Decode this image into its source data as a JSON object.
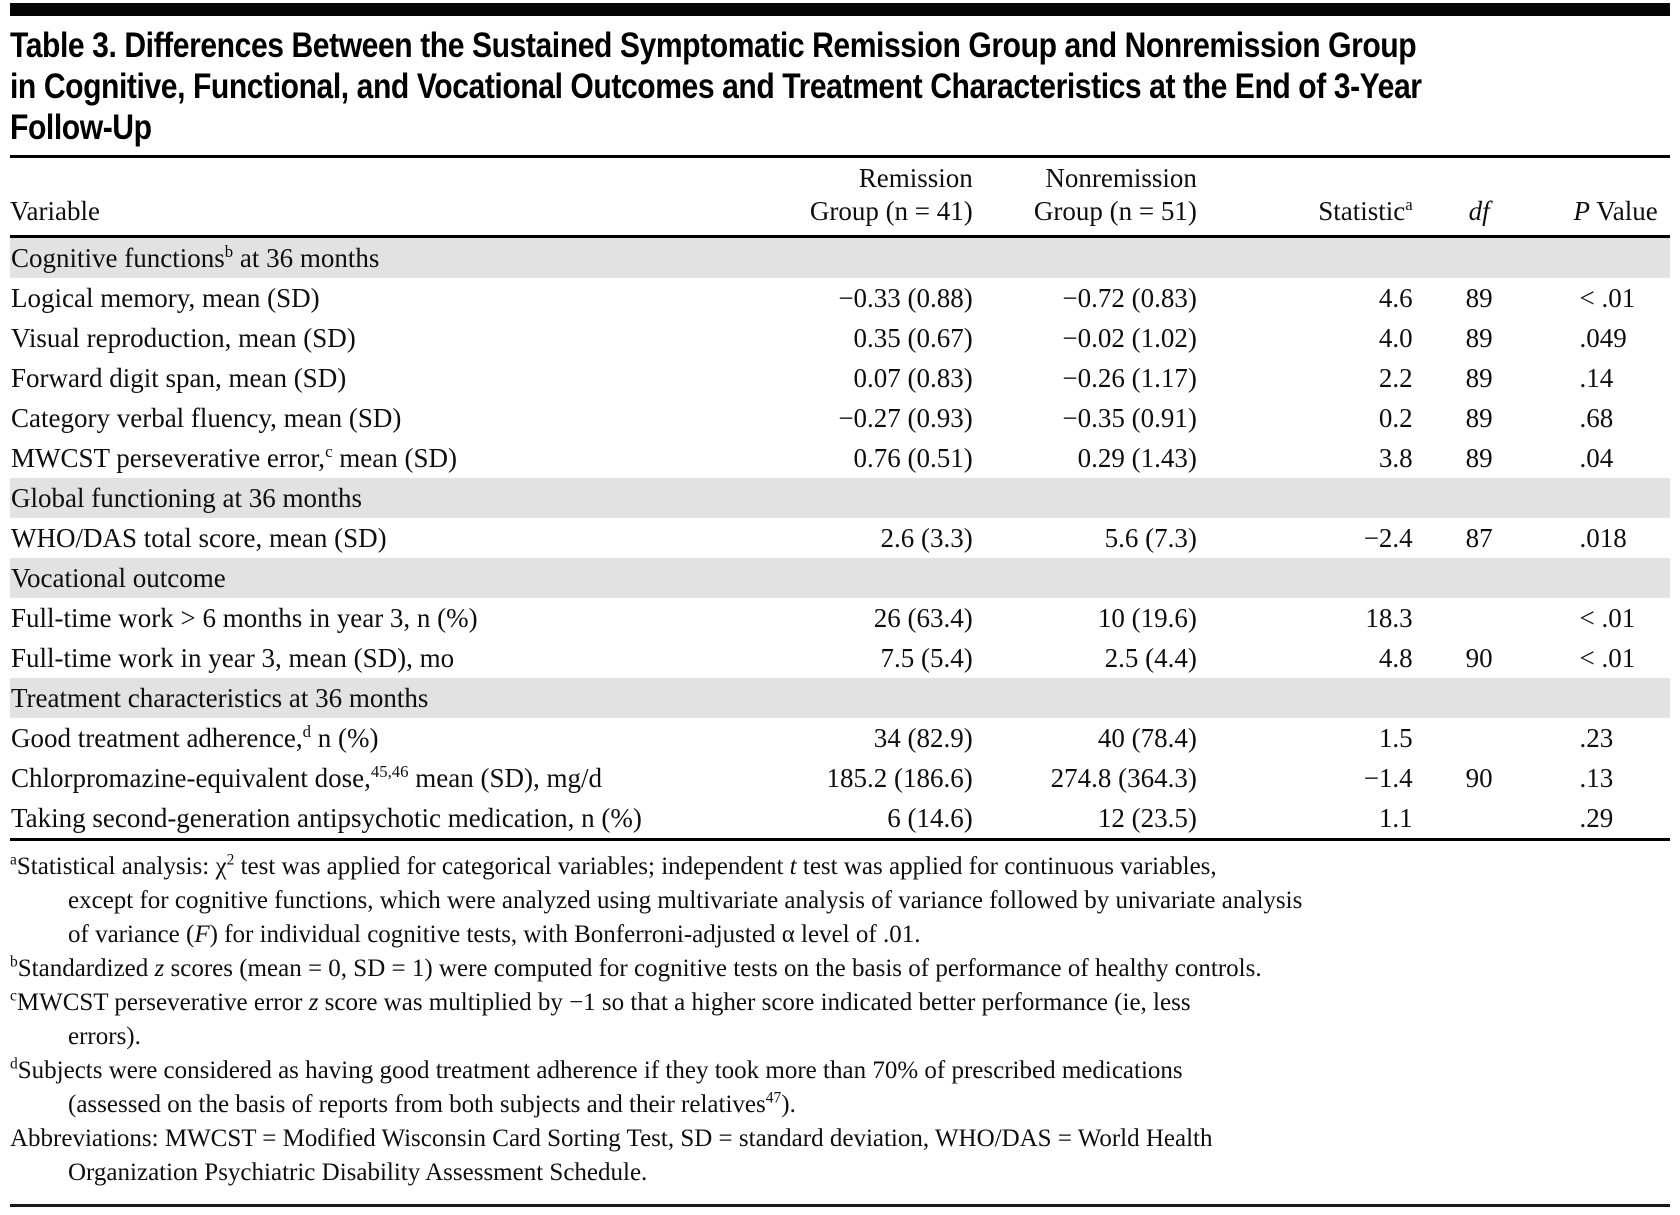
{
  "page": {
    "background_color": "#ffffff",
    "text_color": "#0e0e0e",
    "section_band_color": "#e2e2e2",
    "rule_color": "#000000"
  },
  "title": "Table 3. Differences Between the Sustained Symptomatic Remission Group and Nonremission Group\nin Cognitive, Functional, and Vocational Outcomes and Treatment Characteristics at the End of 3-Year\nFollow-Up",
  "table": {
    "columns": [
      {
        "key": "variable",
        "label": "Variable"
      },
      {
        "key": "remission",
        "label": "Remission\nGroup (n = 41)"
      },
      {
        "key": "nonremission",
        "label": "Nonremission\nGroup (n = 51)"
      },
      {
        "key": "statistic",
        "label": "Statistic^{a}"
      },
      {
        "key": "df",
        "label": "*df*"
      },
      {
        "key": "p",
        "label": "*P* Value"
      }
    ],
    "sections": [
      {
        "header": "Cognitive functions^{b} at 36 months",
        "rows": [
          {
            "variable": "Logical memory, mean (SD)",
            "remission": "−0.33 (0.88)",
            "nonremission": "−0.72 (0.83)",
            "statistic": "4.6",
            "df": "89",
            "p": "< .01"
          },
          {
            "variable": "Visual reproduction, mean (SD)",
            "remission": "0.35 (0.67)",
            "nonremission": "−0.02 (1.02)",
            "statistic": "4.0",
            "df": "89",
            "p": ".049"
          },
          {
            "variable": "Forward digit span, mean (SD)",
            "remission": "0.07 (0.83)",
            "nonremission": "−0.26 (1.17)",
            "statistic": "2.2",
            "df": "89",
            "p": ".14"
          },
          {
            "variable": "Category verbal fluency, mean (SD)",
            "remission": "−0.27 (0.93)",
            "nonremission": "−0.35 (0.91)",
            "statistic": "0.2",
            "df": "89",
            "p": ".68"
          },
          {
            "variable": "MWCST perseverative error,^{c} mean (SD)",
            "remission": "0.76 (0.51)",
            "nonremission": "0.29 (1.43)",
            "statistic": "3.8",
            "df": "89",
            "p": ".04"
          }
        ]
      },
      {
        "header": "Global functioning at 36 months",
        "rows": [
          {
            "variable": "WHO/DAS total score, mean (SD)",
            "remission": "2.6 (3.3)",
            "nonremission": "5.6 (7.3)",
            "statistic": "−2.4",
            "df": "87",
            "p": ".018"
          }
        ]
      },
      {
        "header": "Vocational outcome",
        "rows": [
          {
            "variable": "Full-time work > 6 months in year 3, n (%)",
            "remission": "26 (63.4)",
            "nonremission": "10 (19.6)",
            "statistic": "18.3",
            "df": "",
            "p": "< .01"
          },
          {
            "variable": "Full-time work in year 3, mean (SD), mo",
            "remission": "7.5 (5.4)",
            "nonremission": "2.5 (4.4)",
            "statistic": "4.8",
            "df": "90",
            "p": "< .01"
          }
        ]
      },
      {
        "header": "Treatment characteristics at 36 months",
        "rows": [
          {
            "variable": "Good treatment adherence,^{d} n (%)",
            "remission": "34 (82.9)",
            "nonremission": "40 (78.4)",
            "statistic": "1.5",
            "df": "",
            "p": ".23"
          },
          {
            "variable": "Chlorpromazine-equivalent dose,^{45,46} mean (SD), mg/d",
            "remission": "185.2 (186.6)",
            "nonremission": "274.8 (364.3)",
            "statistic": "−1.4",
            "df": "90",
            "p": ".13"
          },
          {
            "variable": "Taking second-generation antipsychotic medication, n (%)",
            "remission": "6 (14.6)",
            "nonremission": "12 (23.5)",
            "statistic": "1.1",
            "df": "",
            "p": ".29"
          }
        ]
      }
    ]
  },
  "footnotes": [
    "^{a}Statistical analysis: χ^{2} test was applied for categorical variables; independent *t* test was applied for continuous variables,\nexcept for cognitive functions, which were analyzed using multivariate analysis of variance followed by univariate analysis\nof variance (*F*) for individual cognitive tests, with Bonferroni-adjusted α level of .01.",
    "^{b}Standardized *z* scores (mean = 0, SD = 1) were computed for cognitive tests on the basis of performance of healthy controls.",
    "^{c}MWCST perseverative error *z* score was multiplied by −1 so that a higher score indicated better performance (ie, less\nerrors).",
    "^{d}Subjects were considered as having good treatment adherence if they took more than 70% of prescribed medications\n(assessed on the basis of reports from both subjects and their relatives^{47}).",
    "Abbreviations: MWCST = Modified Wisconsin Card Sorting Test, SD = standard deviation, WHO/DAS = World Health\nOrganization Psychiatric Disability Assessment Schedule."
  ]
}
